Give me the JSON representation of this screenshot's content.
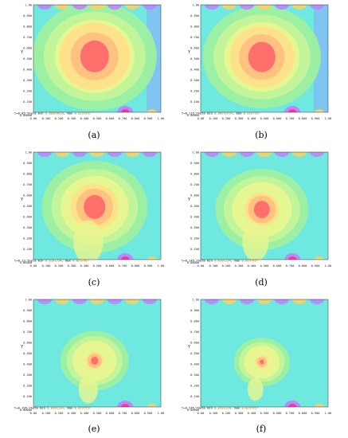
{
  "panels": [
    {
      "caption": "(a)",
      "info_prefix": "t=0.05:theta min",
      "info_min": "0.00569630",
      "info_max_label": "max",
      "info_max": "0.0297957",
      "core": 1.0,
      "spread": 1.0
    },
    {
      "caption": "(b)",
      "info_prefix": "t=0.115:theta min",
      "info_min": "0.00952924",
      "info_max_label": "max",
      "info_max": "0.0297957",
      "core": 0.95,
      "spread": 0.95
    },
    {
      "caption": "(c)",
      "info_prefix": "t=0.13:theta min",
      "info_min": "0.0101234",
      "info_max_label": "max",
      "info_max": "0.0297957",
      "core": 0.75,
      "spread": 0.85
    },
    {
      "caption": "(d)",
      "info_prefix": "t=0.145:theta min",
      "info_min": "0.0101234",
      "info_max_label": "max",
      "info_max": "0.0297957",
      "core": 0.55,
      "spread": 0.75
    },
    {
      "caption": "(e)",
      "info_prefix": "t=0.195:theta min",
      "info_min": "0.0101234",
      "info_max_label": "max",
      "info_max": "0.0297957",
      "core": 0.25,
      "spread": 0.55
    },
    {
      "caption": "(f)",
      "info_prefix": "t=0.245:theta min",
      "info_min": "0.0101234",
      "info_max_label": "max",
      "info_max": "0.0297957",
      "core": 0.15,
      "spread": 0.45
    }
  ],
  "axis": {
    "y_label": "Y",
    "y_ticks": [
      "1.00",
      "0.900",
      "0.800",
      "0.700",
      "0.600",
      "0.500",
      "0.400",
      "0.300",
      "0.200",
      "0.100"
    ],
    "x_ticks": [
      "0.00",
      "0.100",
      "0.200",
      "0.300",
      "0.400",
      "0.500",
      "0.600",
      "0.700",
      "0.800",
      "0.900",
      "1.00"
    ],
    "x_origin_label": "0.00000"
  },
  "colors": {
    "background_cold": "#6fe8e0",
    "blue_edge": "#8aa8ff",
    "green": "#9ef0a0",
    "yellow": "#e8f590",
    "orange": "#ffc080",
    "red": "#ff6a6a",
    "purple": "#c080ff"
  }
}
